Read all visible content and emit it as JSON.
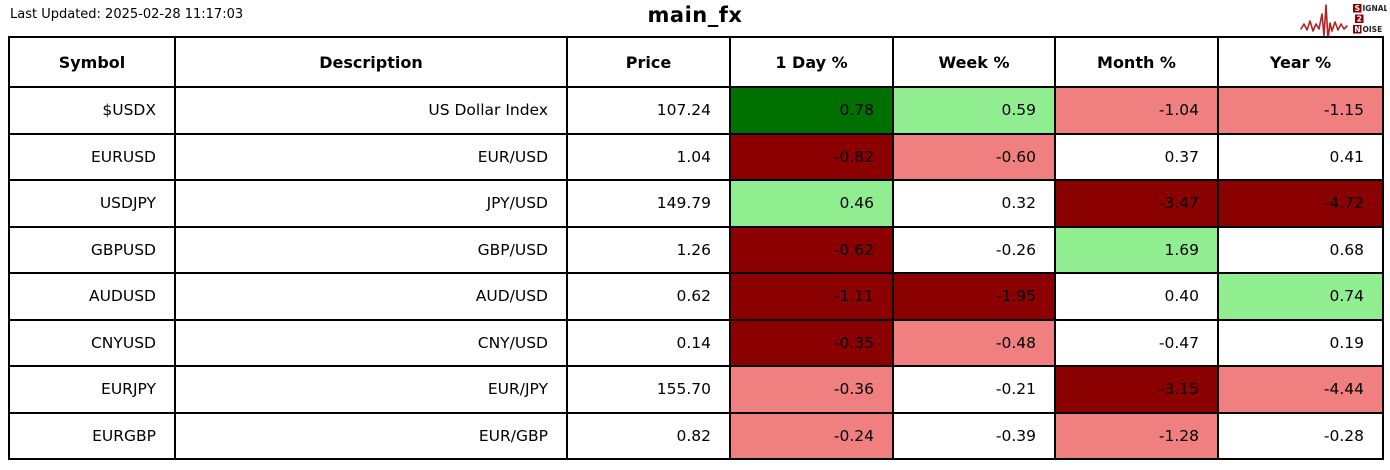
{
  "header": {
    "last_updated": "Last Updated: 2025-02-28 11:17:03",
    "title": "main_fx"
  },
  "logo": {
    "signal_initial": "S",
    "signal_rest": "IGNAL",
    "two": "2",
    "noise_initial": "N",
    "noise_rest": "OISE",
    "waveform_color": "#B22222",
    "box_color": "#8B0000"
  },
  "colors": {
    "dark_green": "#007000",
    "light_green": "#90EE90",
    "light_red": "#F08080",
    "dark_red": "#8B0000",
    "white": "#FFFFFF"
  },
  "table": {
    "columns": [
      "Symbol",
      "Description",
      "Price",
      "1 Day %",
      "Week %",
      "Month %",
      "Year %"
    ],
    "rows": [
      {
        "symbol": "$USDX",
        "description": "US Dollar Index",
        "price": "107.24",
        "changes": [
          {
            "value": "0.78",
            "bg": "dark_green"
          },
          {
            "value": "0.59",
            "bg": "light_green"
          },
          {
            "value": "-1.04",
            "bg": "light_red"
          },
          {
            "value": "-1.15",
            "bg": "light_red"
          }
        ]
      },
      {
        "symbol": "EURUSD",
        "description": "EUR/USD",
        "price": "1.04",
        "changes": [
          {
            "value": "-0.82",
            "bg": "dark_red"
          },
          {
            "value": "-0.60",
            "bg": "light_red"
          },
          {
            "value": "0.37",
            "bg": "white"
          },
          {
            "value": "0.41",
            "bg": "white"
          }
        ]
      },
      {
        "symbol": "USDJPY",
        "description": "JPY/USD",
        "price": "149.79",
        "changes": [
          {
            "value": "0.46",
            "bg": "light_green"
          },
          {
            "value": "0.32",
            "bg": "white"
          },
          {
            "value": "-3.47",
            "bg": "dark_red"
          },
          {
            "value": "-4.72",
            "bg": "dark_red"
          }
        ]
      },
      {
        "symbol": "GBPUSD",
        "description": "GBP/USD",
        "price": "1.26",
        "changes": [
          {
            "value": "-0.62",
            "bg": "dark_red"
          },
          {
            "value": "-0.26",
            "bg": "white"
          },
          {
            "value": "1.69",
            "bg": "light_green"
          },
          {
            "value": "0.68",
            "bg": "white"
          }
        ]
      },
      {
        "symbol": "AUDUSD",
        "description": "AUD/USD",
        "price": "0.62",
        "changes": [
          {
            "value": "-1.11",
            "bg": "dark_red"
          },
          {
            "value": "-1.95",
            "bg": "dark_red"
          },
          {
            "value": "0.40",
            "bg": "white"
          },
          {
            "value": "0.74",
            "bg": "light_green"
          }
        ]
      },
      {
        "symbol": "CNYUSD",
        "description": "CNY/USD",
        "price": "0.14",
        "changes": [
          {
            "value": "-0.35",
            "bg": "dark_red"
          },
          {
            "value": "-0.48",
            "bg": "light_red"
          },
          {
            "value": "-0.47",
            "bg": "white"
          },
          {
            "value": "0.19",
            "bg": "white"
          }
        ]
      },
      {
        "symbol": "EURJPY",
        "description": "EUR/JPY",
        "price": "155.70",
        "changes": [
          {
            "value": "-0.36",
            "bg": "light_red"
          },
          {
            "value": "-0.21",
            "bg": "white"
          },
          {
            "value": "-3.15",
            "bg": "dark_red"
          },
          {
            "value": "-4.44",
            "bg": "light_red"
          }
        ]
      },
      {
        "symbol": "EURGBP",
        "description": "EUR/GBP",
        "price": "0.82",
        "changes": [
          {
            "value": "-0.24",
            "bg": "light_red"
          },
          {
            "value": "-0.39",
            "bg": "white"
          },
          {
            "value": "-1.28",
            "bg": "light_red"
          },
          {
            "value": "-0.28",
            "bg": "white"
          }
        ]
      }
    ]
  },
  "chart_data": {
    "type": "table",
    "title": "main_fx",
    "columns": [
      "Symbol",
      "Description",
      "Price",
      "1 Day %",
      "Week %",
      "Month %",
      "Year %"
    ],
    "rows": [
      [
        "$USDX",
        "US Dollar Index",
        107.24,
        0.78,
        0.59,
        -1.04,
        -1.15
      ],
      [
        "EURUSD",
        "EUR/USD",
        1.04,
        -0.82,
        -0.6,
        0.37,
        0.41
      ],
      [
        "USDJPY",
        "JPY/USD",
        149.79,
        0.46,
        0.32,
        -3.47,
        -4.72
      ],
      [
        "GBPUSD",
        "GBP/USD",
        1.26,
        -0.62,
        -0.26,
        1.69,
        0.68
      ],
      [
        "AUDUSD",
        "AUD/USD",
        0.62,
        -1.11,
        -1.95,
        0.4,
        0.74
      ],
      [
        "CNYUSD",
        "CNY/USD",
        0.14,
        -0.35,
        -0.48,
        -0.47,
        0.19
      ],
      [
        "EURJPY",
        "EUR/JPY",
        155.7,
        -0.36,
        -0.21,
        -3.15,
        -4.44
      ],
      [
        "EURGBP",
        "EUR/GBP",
        0.82,
        -0.24,
        -0.39,
        -1.28,
        -0.28
      ]
    ],
    "cell_color_legend": "dark_green = strong gain, light_green = gain, white = flat, light_red = loss, dark_red = strong loss"
  }
}
